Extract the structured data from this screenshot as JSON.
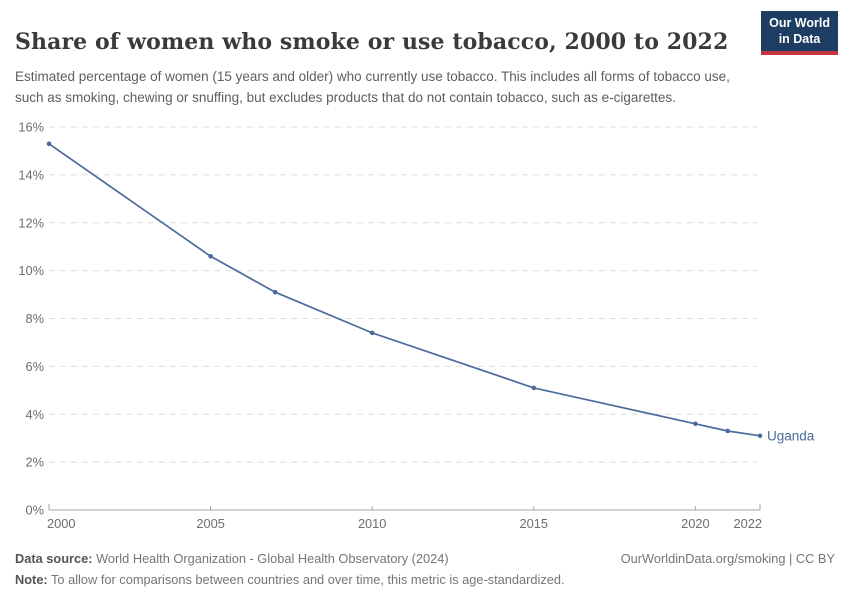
{
  "header": {
    "title": "Share of women who smoke or use tobacco, 2000 to 2022",
    "subtitle": "Estimated percentage of women (15 years and older) who currently use tobacco. This includes all forms of tobacco use, such as smoking, chewing or snuffing, but excludes products that do not contain tobacco, such as e-cigarettes."
  },
  "logo": {
    "line1": "Our World",
    "line2": "in Data",
    "bg_color": "#1d3d63",
    "stripe_color": "#c5353f"
  },
  "chart_data": {
    "type": "line",
    "title": "Share of women who smoke or use tobacco, 2000 to 2022",
    "x": [
      2000,
      2005,
      2007,
      2010,
      2015,
      2020,
      2021,
      2022
    ],
    "series": [
      {
        "name": "Uganda",
        "color": "#4c6a9c",
        "values": [
          15.3,
          10.6,
          9.1,
          7.4,
          5.1,
          3.6,
          3.3,
          3.1
        ]
      }
    ],
    "xlabel": "",
    "ylabel": "",
    "xlim": [
      2000,
      2022
    ],
    "ylim": [
      0,
      16
    ],
    "xticks": [
      2000,
      2005,
      2010,
      2015,
      2020,
      2022
    ],
    "xtick_labels": [
      "2000",
      "2005",
      "2010",
      "2015",
      "2020",
      "2022"
    ],
    "yticks": [
      0,
      2,
      4,
      6,
      8,
      10,
      12,
      14,
      16
    ],
    "ytick_labels": [
      "0%",
      "2%",
      "4%",
      "6%",
      "8%",
      "10%",
      "12%",
      "14%",
      "16%"
    ],
    "grid": "horizontal-dashed",
    "legend": "line-end-label",
    "end_label": "Uganda"
  },
  "colors": {
    "line": "#4c6a9c",
    "grid": "#dcdcdc",
    "axis": "#a3a3a3",
    "tick_text": "#6e6e6e"
  },
  "footer": {
    "source_label": "Data source:",
    "source_text": " World Health Organization - Global Health Observatory (2024)",
    "note_label": "Note:",
    "note_text": " To allow for comparisons between countries and over time, this metric is age-standardized.",
    "link": "OurWorldinData.org/smoking | CC BY"
  }
}
